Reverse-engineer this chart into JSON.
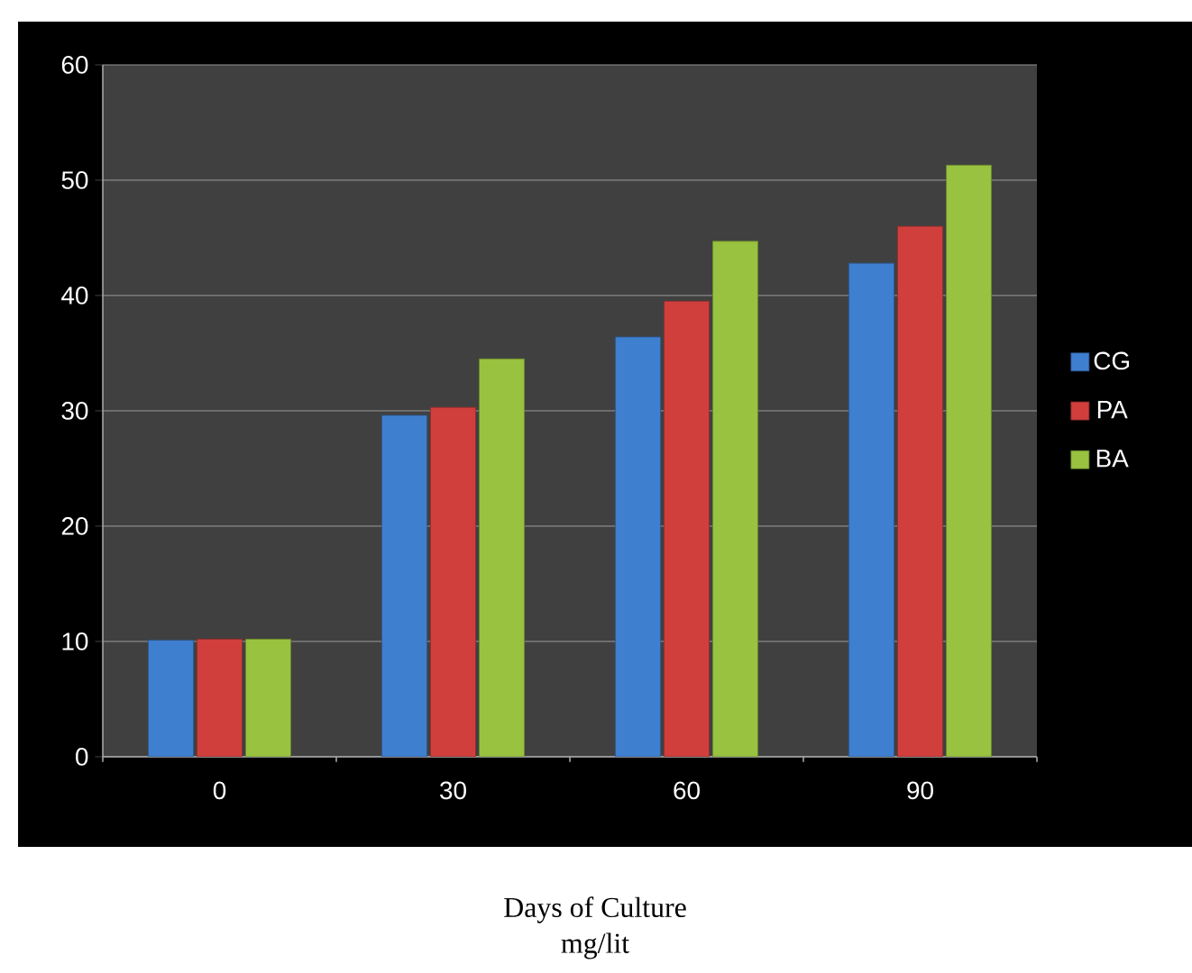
{
  "chart_data": {
    "type": "bar",
    "xlabel": "Days of Culture",
    "annotations": [
      "mg/lit"
    ],
    "categories": [
      "0",
      "30",
      "60",
      "90"
    ],
    "series": [
      {
        "name": "CG",
        "color": "#3f7fd0",
        "values": [
          10.1,
          29.6,
          36.4,
          42.8
        ]
      },
      {
        "name": "PA",
        "color": "#d03f3c",
        "values": [
          10.2,
          30.3,
          39.5,
          46
        ]
      },
      {
        "name": "BA",
        "color": "#98c23f",
        "values": [
          10.2,
          34.5,
          44.7,
          51.3
        ]
      }
    ],
    "ylim": [
      0,
      60
    ],
    "yticks": [
      0,
      10,
      20,
      30,
      40,
      50,
      60
    ],
    "grid": "y",
    "legend": "right"
  }
}
